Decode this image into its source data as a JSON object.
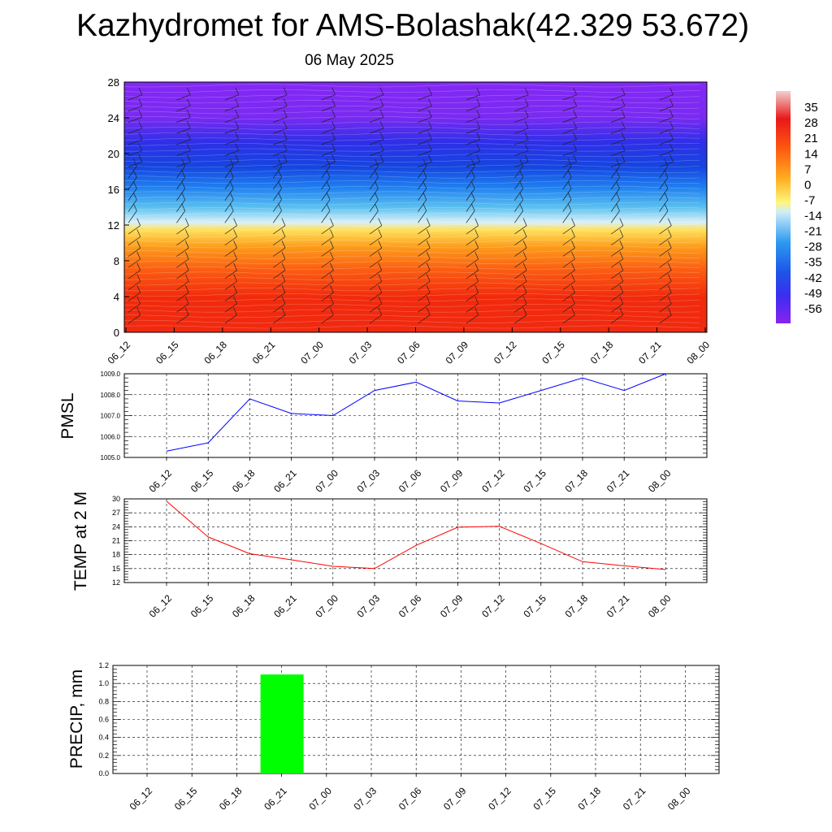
{
  "title": "Kazhydromet for AMS-Bolashak(42.329 53.672)",
  "subtitle": "06 May 2025",
  "colors": {
    "pmsl_line": "#0000ff",
    "temp_line": "#ff0000",
    "precip_bar": "#00ff00",
    "grid": "#000000"
  },
  "chart_data": [
    {
      "type": "heatmap",
      "name": "temperature-wind-cross-section",
      "x_ticks": [
        "06_12",
        "06_15",
        "06_18",
        "06_21",
        "07_00",
        "07_03",
        "07_06",
        "07_09",
        "07_12",
        "07_15",
        "07_18",
        "07_21",
        "08_00"
      ],
      "y_ticks": [
        "0",
        "4",
        "8",
        "12",
        "16",
        "20",
        "24",
        "28"
      ],
      "ylim": [
        0,
        28
      ],
      "colorbar_labels": [
        "35",
        "28",
        "21",
        "14",
        "7",
        "0",
        "-7",
        "-14",
        "-21",
        "-28",
        "-35",
        "-42",
        "-49",
        "-56"
      ],
      "colorbar_range": [
        -63,
        42
      ],
      "overlay": "wind barbs"
    },
    {
      "type": "line",
      "name": "pmsl",
      "ylabel": "PMSL",
      "x": [
        "06_12",
        "06_15",
        "06_18",
        "06_21",
        "07_00",
        "07_03",
        "07_06",
        "07_09",
        "07_12",
        "07_15",
        "07_18",
        "07_21",
        "08_00"
      ],
      "values": [
        1005.3,
        1005.7,
        1007.8,
        1007.1,
        1007.0,
        1008.2,
        1008.6,
        1007.7,
        1007.6,
        1008.2,
        1008.8,
        1008.2,
        1009.0
      ],
      "ylim": [
        1005.0,
        1009.0
      ],
      "y_ticks": [
        "1005.0",
        "1006.0",
        "1007.0",
        "1008.0",
        "1009.0"
      ],
      "grid": true
    },
    {
      "type": "line",
      "name": "temp-2m",
      "ylabel": "TEMP at 2 M",
      "x": [
        "06_12",
        "06_15",
        "06_18",
        "06_21",
        "07_00",
        "07_03",
        "07_06",
        "07_09",
        "07_12",
        "07_15",
        "07_18",
        "07_21",
        "08_00"
      ],
      "values": [
        29.5,
        21.8,
        18.2,
        16.9,
        15.5,
        15.0,
        20.0,
        23.9,
        24.1,
        20.4,
        16.5,
        15.6,
        14.8
      ],
      "ylim": [
        12,
        30
      ],
      "y_ticks": [
        "12",
        "15",
        "18",
        "21",
        "24",
        "27",
        "30"
      ],
      "grid": true
    },
    {
      "type": "bar",
      "name": "precip",
      "ylabel": "PRECIP, mm",
      "categories": [
        "06_12",
        "06_15",
        "06_18",
        "06_21",
        "07_00",
        "07_03",
        "07_06",
        "07_09",
        "07_12",
        "07_15",
        "07_18",
        "07_21",
        "08_00"
      ],
      "values": [
        0,
        0,
        0,
        1.1,
        0,
        0,
        0,
        0,
        0,
        0,
        0,
        0,
        0
      ],
      "ylim": [
        0,
        1.2
      ],
      "y_ticks": [
        "0.0",
        "0.2",
        "0.4",
        "0.6",
        "0.8",
        "1.0",
        "1.2"
      ],
      "grid": true
    }
  ]
}
